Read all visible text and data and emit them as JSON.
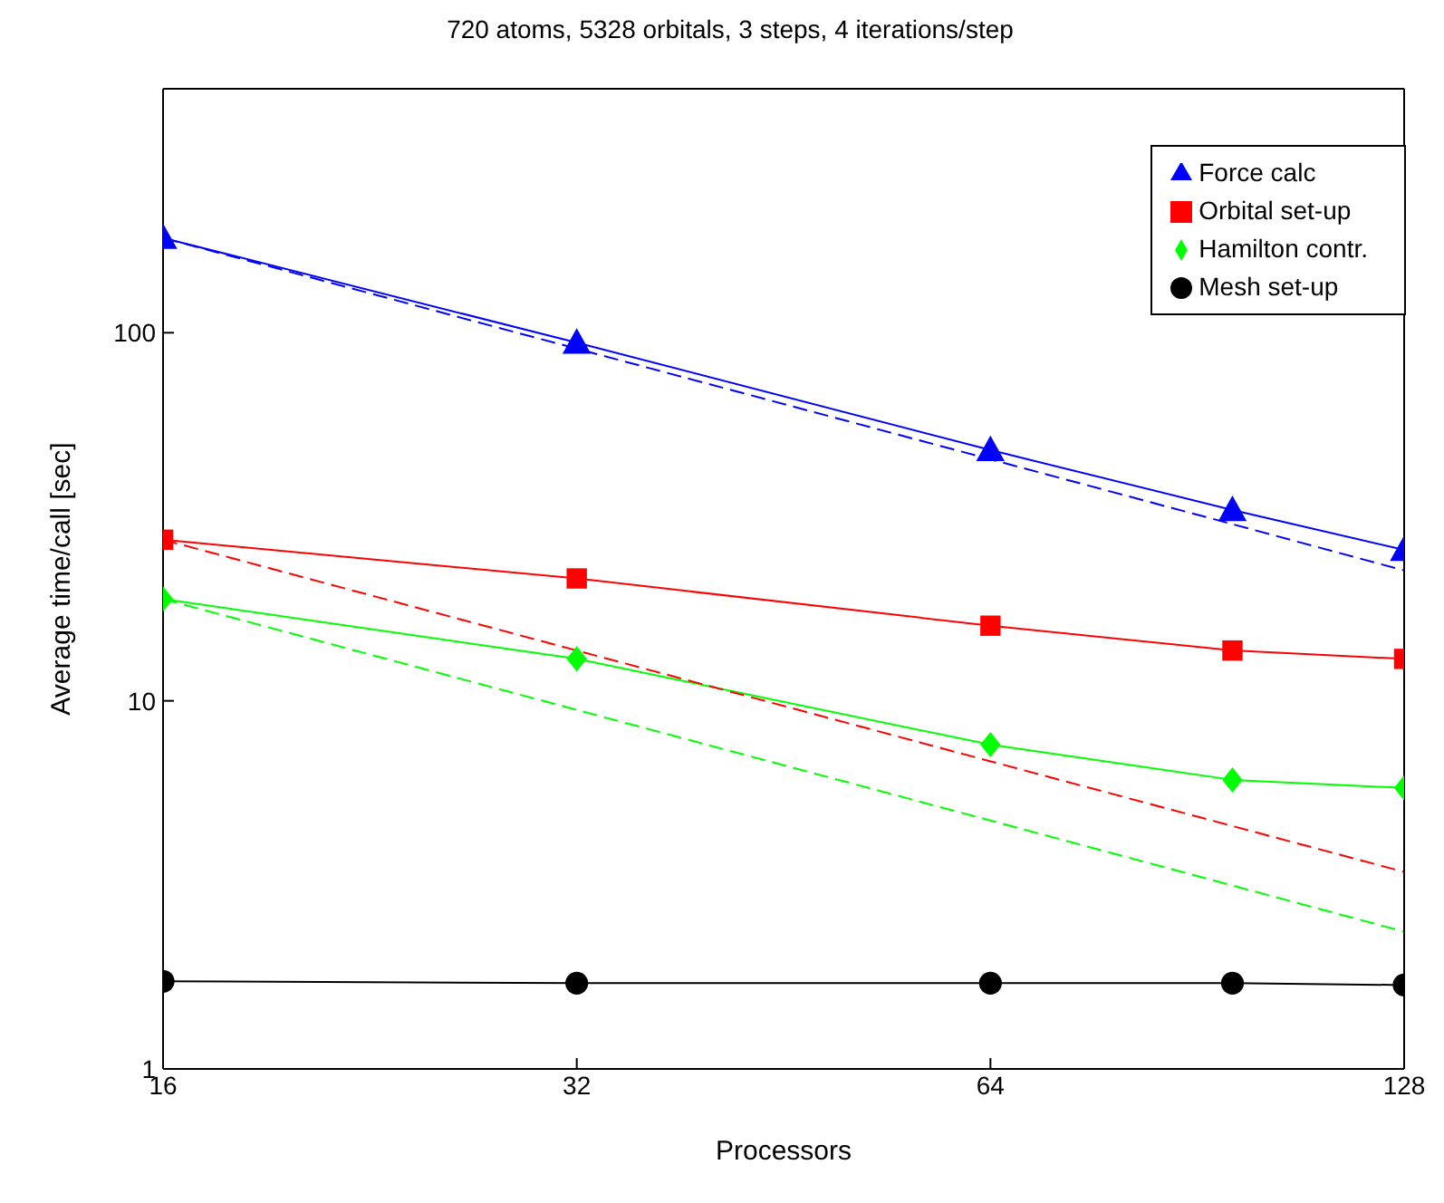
{
  "chart_data": {
    "type": "line",
    "title": "720 atoms, 5328 orbitals, 3 steps, 4 iterations/step",
    "xlabel": "Processors",
    "ylabel": "Average time/call [sec]",
    "log": "xy",
    "xlim": [
      16,
      128
    ],
    "xticks": [
      16,
      32,
      64,
      128
    ],
    "ylim": [
      1,
      460
    ],
    "yticks": [
      1,
      10,
      100
    ],
    "grid": false,
    "legend": "top right",
    "x": [
      16,
      32,
      64,
      96,
      128
    ],
    "series": [
      {
        "name": "Force calc",
        "color": "#0000ff",
        "marker": "triangle",
        "line_style": "solid",
        "values": [
          181,
          94,
          48,
          33,
          25.7
        ]
      },
      {
        "name": "Orbital set-up",
        "color": "#ff0000",
        "marker": "square",
        "line_style": "solid",
        "values": [
          27.4,
          21.5,
          16,
          13.7,
          13
        ]
      },
      {
        "name": "Hamilton contr.",
        "color": "#00ff00",
        "marker": "diamond",
        "line_style": "solid",
        "values": [
          18.9,
          13,
          7.6,
          6.1,
          5.8
        ]
      },
      {
        "name": "Mesh set-up",
        "color": "#000000",
        "marker": "circle",
        "line_style": "solid",
        "values": [
          1.73,
          1.71,
          1.71,
          1.71,
          1.69
        ]
      },
      {
        "color": "#0000ff",
        "marker": "none",
        "line_style": "dashed",
        "values": [
          181,
          90.5,
          45.3,
          30.2,
          22.6
        ]
      },
      {
        "color": "#ff0000",
        "marker": "none",
        "line_style": "dashed",
        "values": [
          27.4,
          13.7,
          6.85,
          4.57,
          3.43
        ]
      },
      {
        "color": "#00ff00",
        "marker": "none",
        "line_style": "dashed",
        "values": [
          18.9,
          9.45,
          4.73,
          3.15,
          2.36
        ]
      }
    ]
  }
}
